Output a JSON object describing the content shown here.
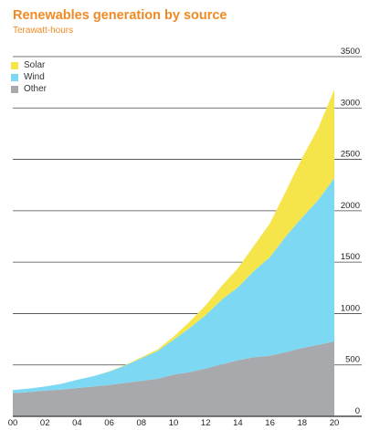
{
  "chart_data": {
    "type": "area",
    "stacked": true,
    "title": "Renewables generation by source",
    "subtitle": "Terawatt-hours",
    "x": [
      "2000",
      "2001",
      "2002",
      "2003",
      "2004",
      "2005",
      "2006",
      "2007",
      "2008",
      "2009",
      "2010",
      "2011",
      "2012",
      "2013",
      "2014",
      "2015",
      "2016",
      "2017",
      "2018",
      "2019",
      "2020"
    ],
    "x_tick_labels": [
      "00",
      "02",
      "04",
      "06",
      "08",
      "10",
      "12",
      "14",
      "16",
      "18",
      "20"
    ],
    "ylim": [
      0,
      3500
    ],
    "y_ticks": [
      0,
      500,
      1000,
      1500,
      2000,
      2500,
      3000,
      3500
    ],
    "y_axis_position": "right",
    "grid": true,
    "legend_position": "top-left",
    "series": [
      {
        "name": "Other",
        "color": "#a7a9ac",
        "values": [
          225,
          235,
          250,
          260,
          275,
          290,
          305,
          325,
          345,
          365,
          405,
          430,
          465,
          505,
          545,
          575,
          590,
          625,
          665,
          695,
          730
        ]
      },
      {
        "name": "Wind",
        "color": "#7dd9f3",
        "values": [
          30,
          35,
          40,
          55,
          80,
          100,
          130,
          170,
          220,
          270,
          340,
          430,
          520,
          630,
          710,
          840,
          960,
          1130,
          1270,
          1410,
          1590
        ]
      },
      {
        "name": "Solar",
        "color": "#f6e54a",
        "values": [
          0,
          0,
          0,
          0,
          0,
          0,
          2,
          5,
          10,
          15,
          30,
          60,
          95,
          135,
          185,
          245,
          330,
          440,
          580,
          700,
          860
        ]
      }
    ]
  }
}
